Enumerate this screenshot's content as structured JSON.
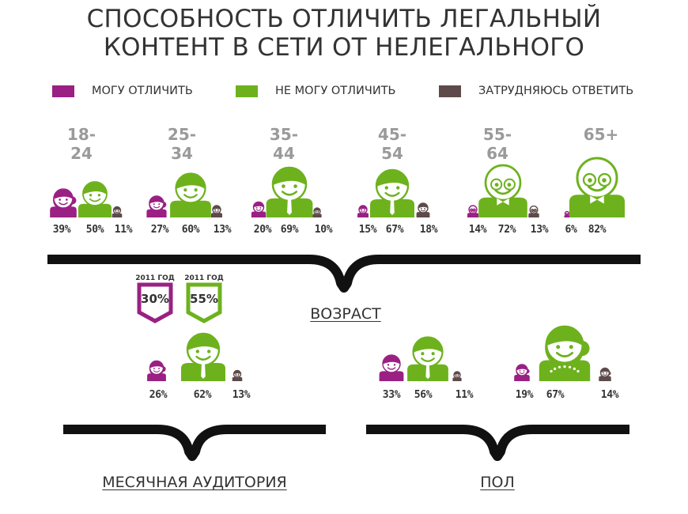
{
  "title_lines": [
    "СПОСОБНОСТЬ ОТЛИЧИТЬ ЛЕГАЛЬНЫЙ",
    "КОНТЕНТ В СЕТИ ОТ НЕЛЕГАЛЬНОГО"
  ],
  "legend": [
    {
      "label": "МОГУ ОТЛИЧИТЬ",
      "color": "#9a2083"
    },
    {
      "label": "НЕ МОГУ ОТЛИЧИТЬ",
      "color": "#6db21d"
    },
    {
      "label": "ЗАТРУДНЯЮСЬ ОТВЕТИТЬ",
      "color": "#5e4a4a"
    }
  ],
  "colors": {
    "purple": "#9a2083",
    "green": "#6db21d",
    "brown": "#5e4a4a",
    "brace": "#111111"
  },
  "sections": {
    "age": "ВОЗРАСТ",
    "monthly": "МЕСЯЧНАЯ АУДИТОРИЯ",
    "gender": "ПОЛ"
  },
  "prev_year": [
    {
      "year": "2011 ГОД",
      "value": "30%",
      "color": "#9a2083"
    },
    {
      "year": "2011 ГОД",
      "value": "55%",
      "color": "#6db21d"
    }
  ],
  "chart_data": [
    {
      "type": "pictogram",
      "group": "ВОЗРАСТ",
      "categories": [
        "18-24",
        "25-34",
        "35-44",
        "45-54",
        "55-64",
        "65+"
      ],
      "series": [
        {
          "name": "МОГУ ОТЛИЧИТЬ",
          "values": [
            "39%",
            "27%",
            "20%",
            "15%",
            "14%",
            "6%"
          ]
        },
        {
          "name": "НЕ МОГУ ОТЛИЧИТЬ",
          "values": [
            "50%",
            "60%",
            "69%",
            "67%",
            "72%",
            "82%"
          ]
        },
        {
          "name": "ЗАТРУДНЯЮСЬ ОТВЕТИТЬ",
          "values": [
            "11%",
            "13%",
            "10%",
            "18%",
            "13%",
            ""
          ]
        }
      ]
    },
    {
      "type": "pictogram",
      "group": "МЕСЯЧНАЯ АУДИТОРИЯ",
      "series": [
        {
          "name": "МОГУ ОТЛИЧИТЬ",
          "values": [
            "26%"
          ]
        },
        {
          "name": "НЕ МОГУ ОТЛИЧИТЬ",
          "values": [
            "62%"
          ]
        },
        {
          "name": "ЗАТРУДНЯЮСЬ ОТВЕТИТЬ",
          "values": [
            "13%"
          ]
        }
      ]
    },
    {
      "type": "pictogram",
      "group": "ПОЛ",
      "categories": [
        "male",
        "female"
      ],
      "series": [
        {
          "name": "МОГУ ОТЛИЧИТЬ",
          "values": [
            "33%",
            "19%"
          ]
        },
        {
          "name": "НЕ МОГУ ОТЛИЧИТЬ",
          "values": [
            "56%",
            "67%"
          ]
        },
        {
          "name": "ЗАТРУДНЯЮСЬ ОТВЕТИТЬ",
          "values": [
            "11%",
            "14%"
          ]
        }
      ]
    }
  ]
}
